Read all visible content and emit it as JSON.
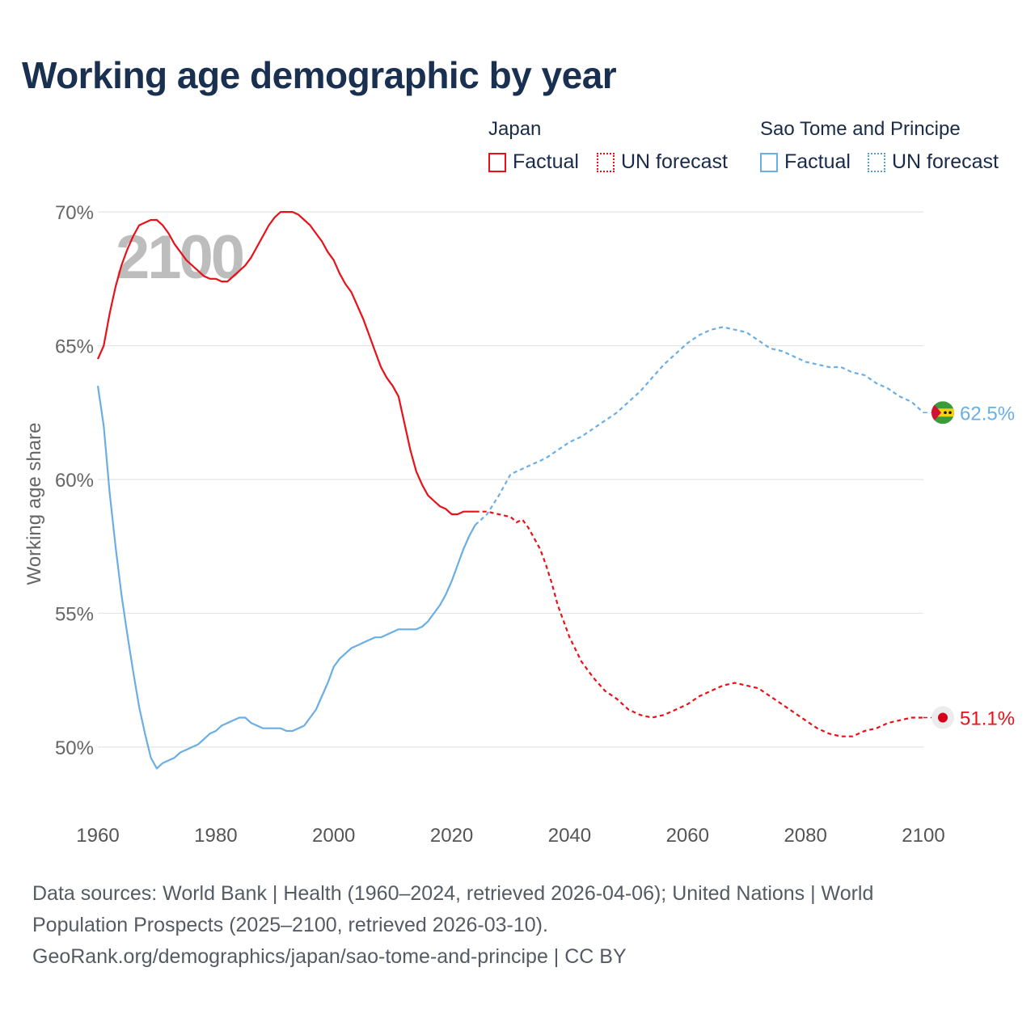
{
  "title": "Working age demographic by year",
  "legend": {
    "groups": [
      {
        "name": "Japan",
        "factual_label": "Factual",
        "forecast_label": "UN forecast"
      },
      {
        "name": "Sao Tome and Principe",
        "factual_label": "Factual",
        "forecast_label": "UN forecast"
      }
    ]
  },
  "year_watermark": "2100",
  "source": {
    "line1": "Data sources: World Bank | Health (1960–2024, retrieved 2026-04-06); United Nations | World Population Prospects (2025–2100, retrieved 2026-03-10).",
    "line2": "GeoRank.org/demographics/japan/sao-tome-and-principe | CC BY"
  },
  "chart_data": {
    "type": "line",
    "title": "Working age demographic by year",
    "xlabel": "",
    "ylabel": "Working age share",
    "xlim": [
      1960,
      2100
    ],
    "ylim": [
      47.7,
      71
    ],
    "x_ticks": [
      1960,
      1980,
      2000,
      2020,
      2040,
      2060,
      2080,
      2100
    ],
    "y_ticks": [
      50,
      55,
      60,
      65,
      70
    ],
    "y_tick_labels": [
      "50%",
      "55%",
      "60%",
      "65%",
      "70%"
    ],
    "grid": true,
    "factual_end_year": 2024,
    "series": [
      {
        "name": "Japan",
        "color": "#e8111a",
        "end_label": "51.1%",
        "end_marker": "japan-flag",
        "points": [
          [
            1960,
            64.5
          ],
          [
            1961,
            65
          ],
          [
            1962,
            66.2
          ],
          [
            1963,
            67.2
          ],
          [
            1964,
            68
          ],
          [
            1965,
            68.6
          ],
          [
            1966,
            69.1
          ],
          [
            1967,
            69.5
          ],
          [
            1968,
            69.6
          ],
          [
            1969,
            69.7
          ],
          [
            1970,
            69.7
          ],
          [
            1971,
            69.5
          ],
          [
            1972,
            69.2
          ],
          [
            1973,
            68.8
          ],
          [
            1974,
            68.5
          ],
          [
            1975,
            68.2
          ],
          [
            1976,
            68
          ],
          [
            1977,
            67.8
          ],
          [
            1978,
            67.6
          ],
          [
            1979,
            67.5
          ],
          [
            1980,
            67.5
          ],
          [
            1981,
            67.4
          ],
          [
            1982,
            67.4
          ],
          [
            1983,
            67.6
          ],
          [
            1984,
            67.8
          ],
          [
            1985,
            68
          ],
          [
            1986,
            68.3
          ],
          [
            1987,
            68.7
          ],
          [
            1988,
            69.1
          ],
          [
            1989,
            69.5
          ],
          [
            1990,
            69.8
          ],
          [
            1991,
            70
          ],
          [
            1992,
            70
          ],
          [
            1993,
            70
          ],
          [
            1994,
            69.9
          ],
          [
            1995,
            69.7
          ],
          [
            1996,
            69.5
          ],
          [
            1997,
            69.2
          ],
          [
            1998,
            68.9
          ],
          [
            1999,
            68.5
          ],
          [
            2000,
            68.2
          ],
          [
            2001,
            67.7
          ],
          [
            2002,
            67.3
          ],
          [
            2003,
            67
          ],
          [
            2004,
            66.5
          ],
          [
            2005,
            66
          ],
          [
            2006,
            65.4
          ],
          [
            2007,
            64.8
          ],
          [
            2008,
            64.2
          ],
          [
            2009,
            63.8
          ],
          [
            2010,
            63.5
          ],
          [
            2011,
            63.1
          ],
          [
            2012,
            62.1
          ],
          [
            2013,
            61.1
          ],
          [
            2014,
            60.3
          ],
          [
            2015,
            59.8
          ],
          [
            2016,
            59.4
          ],
          [
            2017,
            59.2
          ],
          [
            2018,
            59
          ],
          [
            2019,
            58.9
          ],
          [
            2020,
            58.7
          ],
          [
            2021,
            58.7
          ],
          [
            2022,
            58.8
          ],
          [
            2023,
            58.8
          ],
          [
            2024,
            58.8
          ],
          [
            2026,
            58.8
          ],
          [
            2028,
            58.7
          ],
          [
            2030,
            58.6
          ],
          [
            2031,
            58.4
          ],
          [
            2032,
            58.5
          ],
          [
            2033,
            58.2
          ],
          [
            2034,
            57.8
          ],
          [
            2035,
            57.4
          ],
          [
            2036,
            56.8
          ],
          [
            2037,
            56.1
          ],
          [
            2038,
            55.3
          ],
          [
            2040,
            54.1
          ],
          [
            2042,
            53.2
          ],
          [
            2044,
            52.6
          ],
          [
            2046,
            52.1
          ],
          [
            2048,
            51.8
          ],
          [
            2050,
            51.4
          ],
          [
            2052,
            51.2
          ],
          [
            2054,
            51.1
          ],
          [
            2056,
            51.2
          ],
          [
            2058,
            51.4
          ],
          [
            2060,
            51.6
          ],
          [
            2062,
            51.9
          ],
          [
            2064,
            52.1
          ],
          [
            2066,
            52.3
          ],
          [
            2068,
            52.4
          ],
          [
            2070,
            52.3
          ],
          [
            2072,
            52.2
          ],
          [
            2074,
            51.9
          ],
          [
            2076,
            51.6
          ],
          [
            2078,
            51.3
          ],
          [
            2080,
            51
          ],
          [
            2082,
            50.7
          ],
          [
            2084,
            50.5
          ],
          [
            2086,
            50.4
          ],
          [
            2088,
            50.4
          ],
          [
            2090,
            50.6
          ],
          [
            2092,
            50.7
          ],
          [
            2094,
            50.9
          ],
          [
            2096,
            51
          ],
          [
            2098,
            51.1
          ],
          [
            2100,
            51.1
          ]
        ]
      },
      {
        "name": "Sao Tome and Principe",
        "color": "#6aaee6",
        "end_label": "62.5%",
        "end_marker": "sao-tome-flag",
        "points": [
          [
            1960,
            63.5
          ],
          [
            1961,
            62
          ],
          [
            1962,
            59.5
          ],
          [
            1963,
            57.5
          ],
          [
            1964,
            55.7
          ],
          [
            1965,
            54.2
          ],
          [
            1966,
            52.8
          ],
          [
            1967,
            51.5
          ],
          [
            1968,
            50.5
          ],
          [
            1969,
            49.6
          ],
          [
            1970,
            49.2
          ],
          [
            1971,
            49.4
          ],
          [
            1972,
            49.5
          ],
          [
            1973,
            49.6
          ],
          [
            1974,
            49.8
          ],
          [
            1975,
            49.9
          ],
          [
            1976,
            50
          ],
          [
            1977,
            50.1
          ],
          [
            1978,
            50.3
          ],
          [
            1979,
            50.5
          ],
          [
            1980,
            50.6
          ],
          [
            1981,
            50.8
          ],
          [
            1982,
            50.9
          ],
          [
            1983,
            51
          ],
          [
            1984,
            51.1
          ],
          [
            1985,
            51.1
          ],
          [
            1986,
            50.9
          ],
          [
            1987,
            50.8
          ],
          [
            1988,
            50.7
          ],
          [
            1989,
            50.7
          ],
          [
            1990,
            50.7
          ],
          [
            1991,
            50.7
          ],
          [
            1992,
            50.6
          ],
          [
            1993,
            50.6
          ],
          [
            1994,
            50.7
          ],
          [
            1995,
            50.8
          ],
          [
            1996,
            51.1
          ],
          [
            1997,
            51.4
          ],
          [
            1998,
            51.9
          ],
          [
            1999,
            52.4
          ],
          [
            2000,
            53
          ],
          [
            2001,
            53.3
          ],
          [
            2002,
            53.5
          ],
          [
            2003,
            53.7
          ],
          [
            2004,
            53.8
          ],
          [
            2005,
            53.9
          ],
          [
            2006,
            54
          ],
          [
            2007,
            54.1
          ],
          [
            2008,
            54.1
          ],
          [
            2009,
            54.2
          ],
          [
            2010,
            54.3
          ],
          [
            2011,
            54.4
          ],
          [
            2012,
            54.4
          ],
          [
            2013,
            54.4
          ],
          [
            2014,
            54.4
          ],
          [
            2015,
            54.5
          ],
          [
            2016,
            54.7
          ],
          [
            2017,
            55
          ],
          [
            2018,
            55.3
          ],
          [
            2019,
            55.7
          ],
          [
            2020,
            56.2
          ],
          [
            2021,
            56.8
          ],
          [
            2022,
            57.4
          ],
          [
            2023,
            57.9
          ],
          [
            2024,
            58.3
          ],
          [
            2026,
            58.7
          ],
          [
            2028,
            59.4
          ],
          [
            2030,
            60.2
          ],
          [
            2032,
            60.4
          ],
          [
            2034,
            60.6
          ],
          [
            2036,
            60.8
          ],
          [
            2038,
            61.1
          ],
          [
            2040,
            61.4
          ],
          [
            2042,
            61.6
          ],
          [
            2044,
            61.9
          ],
          [
            2046,
            62.2
          ],
          [
            2048,
            62.5
          ],
          [
            2050,
            62.9
          ],
          [
            2052,
            63.3
          ],
          [
            2054,
            63.8
          ],
          [
            2056,
            64.3
          ],
          [
            2058,
            64.7
          ],
          [
            2060,
            65.1
          ],
          [
            2062,
            65.4
          ],
          [
            2064,
            65.6
          ],
          [
            2066,
            65.7
          ],
          [
            2068,
            65.6
          ],
          [
            2070,
            65.5
          ],
          [
            2072,
            65.2
          ],
          [
            2074,
            64.9
          ],
          [
            2076,
            64.8
          ],
          [
            2078,
            64.6
          ],
          [
            2080,
            64.4
          ],
          [
            2082,
            64.3
          ],
          [
            2084,
            64.2
          ],
          [
            2086,
            64.2
          ],
          [
            2088,
            64
          ],
          [
            2090,
            63.9
          ],
          [
            2092,
            63.6
          ],
          [
            2094,
            63.4
          ],
          [
            2096,
            63.1
          ],
          [
            2098,
            62.9
          ],
          [
            2100,
            62.5
          ]
        ]
      }
    ]
  }
}
